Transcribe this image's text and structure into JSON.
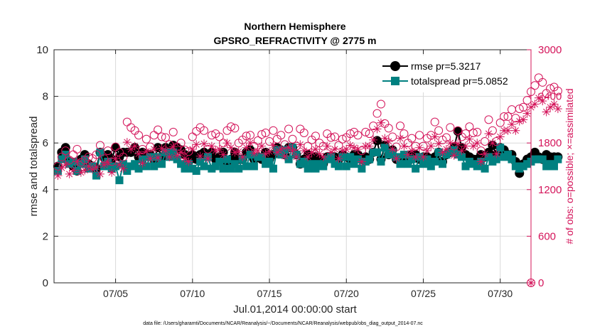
{
  "chart_data": {
    "type": "line",
    "title": "Northern Hemisphere",
    "subtitle": "GPSRO_REFRACTIVITY @ 2775 m",
    "xlabel": "Jul.01,2014 00:00:00 start",
    "ylabel": "rmse and totalspread",
    "ylabel_right": "# of obs: o=possible; ×=assimilated",
    "footnote": "data file: /Users/gharamti/Documents/NCAR/Reanalysis/~/Documents/NCAR/Reanalysis/webpub/obs_diag_output_2014-07.nc",
    "xlim": [
      1,
      32
    ],
    "ylim": [
      0,
      10
    ],
    "ylim_right": [
      0,
      3000
    ],
    "x_ticks": [
      5,
      10,
      15,
      20,
      25,
      30
    ],
    "x_tick_labels": [
      "07/05",
      "07/10",
      "07/15",
      "07/20",
      "07/25",
      "07/30"
    ],
    "y_ticks": [
      0,
      2,
      4,
      6,
      8,
      10
    ],
    "y_tick_labels": [
      "0",
      "2",
      "4",
      "6",
      "8",
      "10"
    ],
    "y_right_ticks": [
      0,
      600,
      1200,
      1800,
      2400,
      3000
    ],
    "y_right_tick_labels": [
      "0",
      "600",
      "1200",
      "1800",
      "2400",
      "3000"
    ],
    "grid": true,
    "legend_position": "top-right",
    "colors": {
      "rmse": "#000000",
      "totalspread": "#008080",
      "obs": "#d4145a",
      "axis": "#262626",
      "grid": "#d9d9d9"
    },
    "series": [
      {
        "name": "rmse",
        "legend_label": "rmse pr=5.3217",
        "axis": "left",
        "marker": "circle",
        "sample_every": 0.25,
        "x_start": 1.25,
        "values": [
          5.0,
          5.6,
          5.8,
          5.2,
          5.0,
          4.8,
          5.3,
          5.5,
          5.1,
          5.0,
          4.9,
          5.6,
          5.4,
          5.5,
          5.3,
          5.8,
          5.4,
          5.6,
          5.6,
          5.6,
          5.8,
          5.4,
          5.6,
          5.5,
          5.5,
          5.3,
          5.8,
          5.4,
          5.8,
          5.7,
          5.9,
          5.8,
          5.7,
          5.5,
          5.2,
          5.5,
          5.3,
          5.5,
          5.6,
          5.5,
          5.6,
          5.3,
          5.4,
          5.6,
          5.2,
          5.3,
          5.6,
          5.3,
          5.3,
          5.6,
          5.7,
          5.3,
          5.4,
          5.3,
          5.6,
          5.3,
          5.5,
          5.8,
          5.7,
          5.5,
          5.8,
          5.8,
          5.5,
          5.1,
          5.3,
          5.5,
          5.3,
          5.4,
          5.3,
          5.1,
          5.4,
          5.4,
          5.4,
          5.3,
          5.5,
          5.4,
          5.3,
          5.5,
          5.5,
          5.3,
          5.4,
          5.3,
          5.6,
          6.1,
          5.3,
          5.9,
          5.5,
          5.7,
          5.3,
          5.3,
          5.3,
          5.2,
          5.5,
          5.5,
          5.3,
          5.4,
          5.4,
          5.3,
          5.4,
          5.6,
          5.2,
          5.5,
          5.6,
          5.8,
          6.5,
          5.8,
          5.5,
          5.4,
          5.3,
          5.3,
          5.5,
          5.4,
          5.6,
          5.9,
          5.5,
          5.8,
          5.7,
          5.5,
          5.5,
          5.2,
          4.7,
          5.1,
          5.3,
          5.4,
          5.6,
          5.4,
          5.3,
          5.5,
          5.4,
          5.4,
          5.4
        ]
      },
      {
        "name": "totalspread",
        "legend_label": "totalspread pr=5.0852",
        "axis": "left",
        "marker": "square",
        "sample_every": 0.25,
        "x_start": 1.25,
        "values": [
          4.8,
          5.3,
          5.5,
          5.1,
          5.2,
          4.8,
          5.1,
          5.3,
          4.9,
          5.0,
          4.6,
          5.6,
          5.0,
          5.2,
          4.9,
          5.0,
          4.4,
          5.1,
          4.8,
          5.0,
          5.1,
          4.9,
          5.3,
          5.0,
          5.4,
          5.0,
          5.4,
          5.1,
          5.6,
          5.4,
          5.6,
          5.3,
          5.1,
          4.9,
          5.1,
          4.9,
          4.8,
          5.2,
          5.0,
          5.4,
          4.9,
          5.0,
          5.2,
          4.9,
          5.3,
          4.9,
          5.1,
          4.9,
          5.3,
          5.0,
          5.5,
          5.0,
          5.4,
          5.4,
          5.1,
          5.2,
          4.9,
          5.7,
          5.5,
          5.7,
          5.3,
          5.8,
          5.5,
          5.1,
          5.2,
          4.9,
          5.1,
          4.9,
          5.1,
          5.0,
          5.3,
          5.4,
          5.1,
          5.0,
          5.4,
          5.0,
          5.4,
          5.1,
          5.3,
          4.9,
          5.2,
          5.3,
          5.6,
          5.6,
          5.2,
          5.8,
          5.5,
          5.6,
          5.4,
          5.1,
          5.5,
          5.1,
          5.3,
          4.9,
          5.4,
          5.1,
          5.3,
          5.0,
          5.2,
          5.6,
          5.1,
          5.5,
          5.6,
          5.7,
          5.5,
          5.4,
          5.0,
          5.2,
          5.1,
          5.0,
          5.2,
          4.9,
          5.4,
          5.2,
          5.3,
          5.8,
          5.4,
          5.5,
          5.3,
          5.0,
          4.9,
          5.0,
          5.1,
          5.2,
          5.3,
          5.3,
          5.3,
          5.0,
          5.1,
          5.0,
          5.3
        ]
      },
      {
        "name": "possible",
        "legend_label": "",
        "axis": "right",
        "marker": "circle-open",
        "sample_every": 0.25,
        "x_start": 1.25,
        "values": [
          1500,
          1620,
          1700,
          1580,
          1650,
          1720,
          1550,
          1580,
          1620,
          1600,
          1650,
          1770,
          1600,
          1700,
          1560,
          1750,
          1680,
          1620,
          2070,
          2000,
          1960,
          1900,
          1720,
          1850,
          1750,
          1900,
          1970,
          1880,
          1870,
          1780,
          1940,
          1750,
          1800,
          1710,
          1690,
          1880,
          1950,
          2000,
          1960,
          1720,
          1900,
          1920,
          1880,
          1800,
          1960,
          2010,
          1990,
          1800,
          1840,
          1890,
          1900,
          1760,
          1830,
          1910,
          1930,
          1820,
          1960,
          1850,
          1900,
          1780,
          1980,
          1850,
          1760,
          1980,
          1930,
          1760,
          1840,
          1890,
          1800,
          1760,
          1920,
          1870,
          1880,
          1770,
          1850,
          1870,
          1920,
          1940,
          1900,
          1700,
          1940,
          1920,
          2020,
          2180,
          2300,
          2050,
          1990,
          1880,
          1750,
          2020,
          1920,
          1800,
          1860,
          1760,
          1900,
          1760,
          1860,
          1900,
          2070,
          1960,
          1840,
          1870,
          2000,
          1760,
          1960,
          1880,
          1920,
          2010,
          1930,
          1940,
          1700,
          1820,
          2100,
          1960,
          1820,
          2060,
          2140,
          2140,
          2230,
          2120,
          2240,
          2260,
          2350,
          2460,
          2540,
          2640,
          2580,
          2440,
          2500,
          2520,
          2470
        ]
      },
      {
        "name": "assimilated",
        "legend_label": "",
        "axis": "right",
        "marker": "asterisk",
        "sample_every": 0.25,
        "x_start": 1.25,
        "values": [
          1380,
          1480,
          1520,
          1400,
          1450,
          1560,
          1420,
          1450,
          1500,
          1460,
          1490,
          1400,
          1520,
          1550,
          1420,
          1600,
          1520,
          1470,
          1810,
          1720,
          1760,
          1660,
          1540,
          1690,
          1600,
          1720,
          1610,
          1730,
          1700,
          1620,
          1750,
          1640,
          1680,
          1600,
          1560,
          1720,
          1780,
          1630,
          1790,
          1600,
          1760,
          1700,
          1720,
          1650,
          1800,
          1740,
          1680,
          1690,
          1620,
          1740,
          1800,
          1670,
          1700,
          1760,
          1660,
          1690,
          1770,
          1680,
          1720,
          1630,
          1740,
          1700,
          1620,
          1780,
          1700,
          1620,
          1680,
          1720,
          1660,
          1620,
          1760,
          1680,
          1720,
          1600,
          1700,
          1720,
          1770,
          1740,
          1720,
          1560,
          1760,
          1760,
          1840,
          1980,
          2060,
          1860,
          1820,
          1720,
          1600,
          1860,
          1760,
          1650,
          1700,
          1620,
          1740,
          1620,
          1700,
          1760,
          1880,
          1790,
          1680,
          1720,
          1800,
          1640,
          1790,
          1700,
          1760,
          1850,
          1760,
          1800,
          1560,
          1660,
          1920,
          1800,
          1660,
          1880,
          1960,
          1960,
          2040,
          1960,
          2080,
          2100,
          2180,
          2260,
          2300,
          2380,
          2340,
          2200,
          2260,
          2300,
          2240
        ]
      }
    ]
  }
}
